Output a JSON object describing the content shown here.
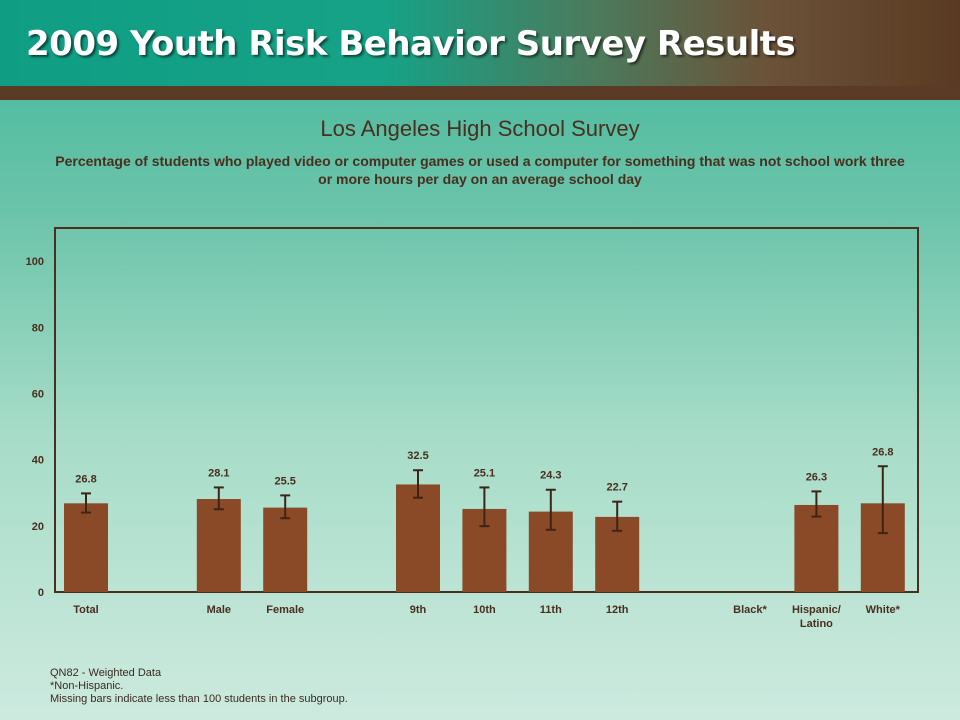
{
  "header": {
    "title": "2009 Youth Risk Behavior Survey Results"
  },
  "colors": {
    "bar": "#8b4a27",
    "error_bar": "#3d2416",
    "plot_border": "#4a2e1e",
    "text": "#4a2e1e",
    "banner_rule": "#5b3b25"
  },
  "chart_data": {
    "type": "bar",
    "title": "Los Angeles High School Survey",
    "subtitle": "Percentage of students who played video or computer games or used a computer for something that was not school work three or more hours per day on an average school day",
    "ylim": [
      0,
      110
    ],
    "yticks": [
      "0",
      "20",
      "40",
      "60",
      "80",
      "100"
    ],
    "grid": false,
    "categories": [
      "Total",
      "",
      "Male",
      "Female",
      "",
      "9th",
      "10th",
      "11th",
      "12th",
      "",
      "Black*",
      "Hispanic/\nLatino",
      "White*"
    ],
    "values": [
      26.8,
      null,
      28.1,
      25.5,
      null,
      32.5,
      25.1,
      24.3,
      22.7,
      null,
      null,
      26.3,
      26.8
    ],
    "value_labels": [
      "26.8",
      "",
      "28.1",
      "25.5",
      "",
      "32.5",
      "25.1",
      "24.3",
      "22.7",
      "",
      "",
      "26.3",
      "26.8"
    ],
    "ci_low": [
      24.0,
      null,
      25.0,
      22.3,
      null,
      28.5,
      19.9,
      18.8,
      18.5,
      null,
      null,
      22.8,
      17.8
    ],
    "ci_high": [
      29.8,
      null,
      31.6,
      29.2,
      null,
      36.8,
      31.6,
      30.9,
      27.3,
      null,
      null,
      30.4,
      38.0
    ]
  },
  "footnotes": [
    "QN82 - Weighted Data",
    "*Non-Hispanic.",
    "Missing bars indicate less than 100 students in the subgroup."
  ]
}
